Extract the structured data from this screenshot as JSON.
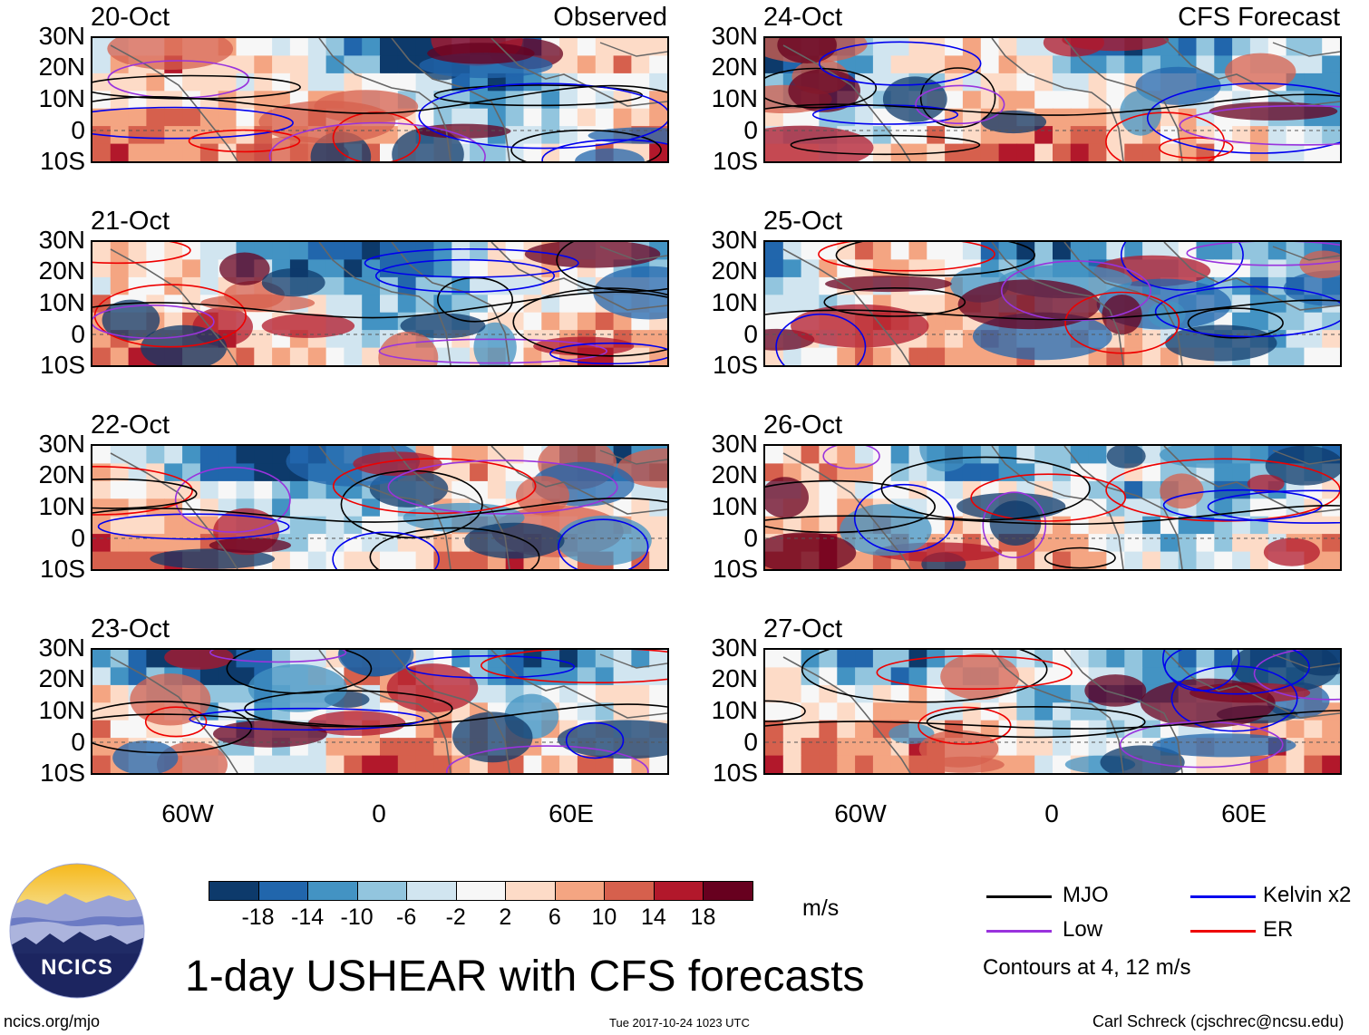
{
  "chart_data": {
    "type": "heatmap",
    "title": "1-day USHEAR with CFS forecasts",
    "units": "m/s",
    "latitude_ticks": [
      "30N",
      "20N",
      "10N",
      "0",
      "10S"
    ],
    "longitude_ticks": [
      "60W",
      "0",
      "60E"
    ],
    "observed_label": "Observed",
    "forecast_label": "CFS Forecast",
    "panels": [
      {
        "date": "20-Oct",
        "kind": "observed",
        "column": "left"
      },
      {
        "date": "21-Oct",
        "kind": "observed",
        "column": "left"
      },
      {
        "date": "22-Oct",
        "kind": "observed",
        "column": "left"
      },
      {
        "date": "23-Oct",
        "kind": "observed",
        "column": "left"
      },
      {
        "date": "24-Oct",
        "kind": "forecast",
        "column": "right"
      },
      {
        "date": "25-Oct",
        "kind": "forecast",
        "column": "right"
      },
      {
        "date": "26-Oct",
        "kind": "forecast",
        "column": "right"
      },
      {
        "date": "27-Oct",
        "kind": "forecast",
        "column": "right"
      }
    ],
    "colorbar": {
      "labels": [
        "-18",
        "-14",
        "-10",
        "-6",
        "-2",
        "2",
        "6",
        "10",
        "14",
        "18"
      ],
      "colors": [
        "#0d3a6b",
        "#2166ac",
        "#4393c3",
        "#92c5de",
        "#d1e5f0",
        "#f7f7f7",
        "#fddbc7",
        "#f4a582",
        "#d6604d",
        "#b2182b",
        "#67001f"
      ]
    },
    "contour_legend": [
      {
        "label": "MJO",
        "color": "#000000"
      },
      {
        "label": "Kelvin x2",
        "color": "#0000ee"
      },
      {
        "label": "Low",
        "color": "#9933dd"
      },
      {
        "label": "ER",
        "color": "#ee0000"
      }
    ],
    "contour_note": "Contours at 4, 12 m/s"
  },
  "footer": {
    "logo_text": "NCICS",
    "website": "ncics.org/mjo",
    "timestamp": "Tue 2017-10-24 1023 UTC",
    "author": "Carl Schreck (cjschrec@ncsu.edu)"
  }
}
